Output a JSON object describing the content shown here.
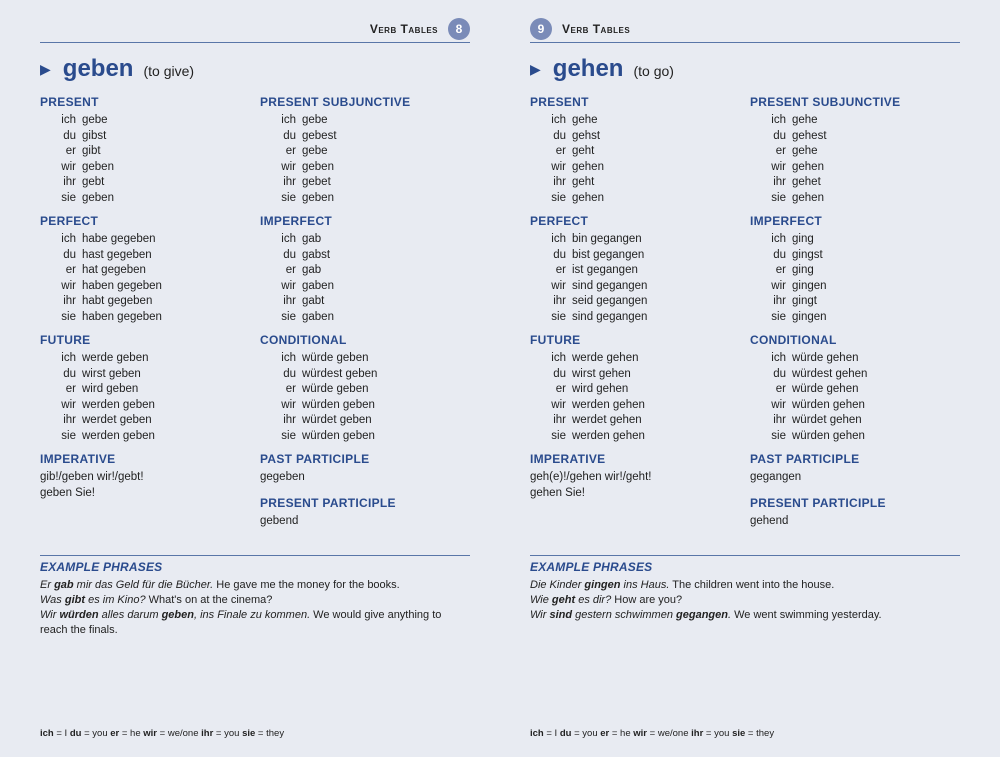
{
  "colors": {
    "accent": "#2a4b8d",
    "badge": "#7a8bb8",
    "rule": "#5976a8",
    "bg": "#e8ebf2",
    "text": "#222"
  },
  "global": {
    "header_label": "Verb Tables",
    "example_heading": "EXAMPLE PHRASES",
    "footnote_html": "<b>ich</b> = I <b>du</b> = you <b>er</b> = he <b>wir</b> = we/one <b>ihr</b> = you <b>sie</b> = they"
  },
  "pronouns": [
    "ich",
    "du",
    "er",
    "wir",
    "ihr",
    "sie"
  ],
  "pages": {
    "left": {
      "page_num": "8",
      "verb": "geben",
      "translation": "(to give)",
      "tenses": {
        "present": {
          "heading": "PRESENT",
          "forms": [
            "gebe",
            "gibst",
            "gibt",
            "geben",
            "gebt",
            "geben"
          ]
        },
        "present_subj": {
          "heading": "PRESENT SUBJUNCTIVE",
          "forms": [
            "gebe",
            "gebest",
            "gebe",
            "geben",
            "gebet",
            "geben"
          ]
        },
        "perfect": {
          "heading": "PERFECT",
          "forms": [
            "habe gegeben",
            "hast gegeben",
            "hat gegeben",
            "haben gegeben",
            "habt gegeben",
            "haben gegeben"
          ]
        },
        "imperfect": {
          "heading": "IMPERFECT",
          "forms": [
            "gab",
            "gabst",
            "gab",
            "gaben",
            "gabt",
            "gaben"
          ]
        },
        "future": {
          "heading": "FUTURE",
          "forms": [
            "werde geben",
            "wirst geben",
            "wird geben",
            "werden geben",
            "werdet geben",
            "werden geben"
          ]
        },
        "conditional": {
          "heading": "CONDITIONAL",
          "forms": [
            "würde geben",
            "würdest geben",
            "würde geben",
            "würden geben",
            "würdet geben",
            "würden geben"
          ]
        }
      },
      "imperative": {
        "heading": "IMPERATIVE",
        "lines": [
          "gib!/geben wir!/gebt!",
          "geben Sie!"
        ]
      },
      "past_part": {
        "heading": "PAST PARTICIPLE",
        "value": "gegeben"
      },
      "pres_part": {
        "heading": "PRESENT PARTICIPLE",
        "value": "gebend"
      },
      "examples": [
        {
          "de": "Er <b>gab</b> mir das Geld für die Bücher.",
          "en": "He gave me the money for the books."
        },
        {
          "de": "Was <b>gibt</b> es im Kino?",
          "en": "What's on at the cinema?"
        },
        {
          "de": "Wir <b>würden</b> alles darum <b>geben</b>, ins Finale zu kommen.",
          "en": "We would give anything to reach the finals."
        }
      ]
    },
    "right": {
      "page_num": "9",
      "verb": "gehen",
      "translation": "(to go)",
      "tenses": {
        "present": {
          "heading": "PRESENT",
          "forms": [
            "gehe",
            "gehst",
            "geht",
            "gehen",
            "geht",
            "gehen"
          ]
        },
        "present_subj": {
          "heading": "PRESENT SUBJUNCTIVE",
          "forms": [
            "gehe",
            "gehest",
            "gehe",
            "gehen",
            "gehet",
            "gehen"
          ]
        },
        "perfect": {
          "heading": "PERFECT",
          "forms": [
            "bin gegangen",
            "bist gegangen",
            "ist gegangen",
            "sind gegangen",
            "seid gegangen",
            "sind gegangen"
          ]
        },
        "imperfect": {
          "heading": "IMPERFECT",
          "forms": [
            "ging",
            "gingst",
            "ging",
            "gingen",
            "gingt",
            "gingen"
          ]
        },
        "future": {
          "heading": "FUTURE",
          "forms": [
            "werde gehen",
            "wirst gehen",
            "wird gehen",
            "werden gehen",
            "werdet gehen",
            "werden gehen"
          ]
        },
        "conditional": {
          "heading": "CONDITIONAL",
          "forms": [
            "würde gehen",
            "würdest gehen",
            "würde gehen",
            "würden gehen",
            "würdet gehen",
            "würden gehen"
          ]
        }
      },
      "imperative": {
        "heading": "IMPERATIVE",
        "lines": [
          "geh(e)!/gehen wir!/geht!",
          "gehen Sie!"
        ]
      },
      "past_part": {
        "heading": "PAST PARTICIPLE",
        "value": "gegangen"
      },
      "pres_part": {
        "heading": "PRESENT PARTICIPLE",
        "value": "gehend"
      },
      "examples": [
        {
          "de": "Die Kinder <b>gingen</b> ins Haus.",
          "en": "The children went into the house."
        },
        {
          "de": "Wie <b>geht</b> es dir?",
          "en": "How are you?"
        },
        {
          "de": "Wir <b>sind</b> gestern schwimmen <b>gegangen</b>.",
          "en": "We went swimming yesterday."
        }
      ]
    }
  }
}
